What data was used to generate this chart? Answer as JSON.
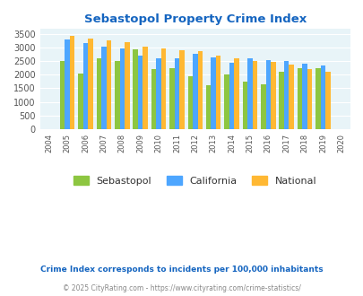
{
  "title": "Sebastopol Property Crime Index",
  "plot_years": [
    2005,
    2006,
    2007,
    2008,
    2009,
    2010,
    2011,
    2012,
    2013,
    2014,
    2015,
    2016,
    2017,
    2018,
    2019
  ],
  "sebastopol": [
    2500,
    2030,
    2610,
    2500,
    2940,
    2195,
    2230,
    1950,
    1620,
    2000,
    1750,
    1650,
    2120,
    2230,
    2250
  ],
  "california": [
    3310,
    3160,
    3040,
    2960,
    2710,
    2620,
    2590,
    2760,
    2650,
    2450,
    2610,
    2550,
    2500,
    2400,
    2340
  ],
  "national": [
    3430,
    3340,
    3260,
    3210,
    3050,
    2960,
    2910,
    2870,
    2720,
    2590,
    2490,
    2460,
    2390,
    2210,
    2120
  ],
  "all_x_labels": [
    2004,
    2005,
    2006,
    2007,
    2008,
    2009,
    2010,
    2011,
    2012,
    2013,
    2014,
    2015,
    2016,
    2017,
    2018,
    2019,
    2020
  ],
  "colors": {
    "sebastopol": "#8DC641",
    "california": "#4DA6FF",
    "national": "#FFB833"
  },
  "ylabel_vals": [
    0,
    500,
    1000,
    1500,
    2000,
    2500,
    3000,
    3500
  ],
  "background_color": "#E8F4F8",
  "title_color": "#1565C0",
  "subtitle": "Crime Index corresponds to incidents per 100,000 inhabitants",
  "footer": "© 2025 CityRating.com - https://www.cityrating.com/crime-statistics/",
  "subtitle_color": "#1565C0",
  "footer_color": "#888888"
}
